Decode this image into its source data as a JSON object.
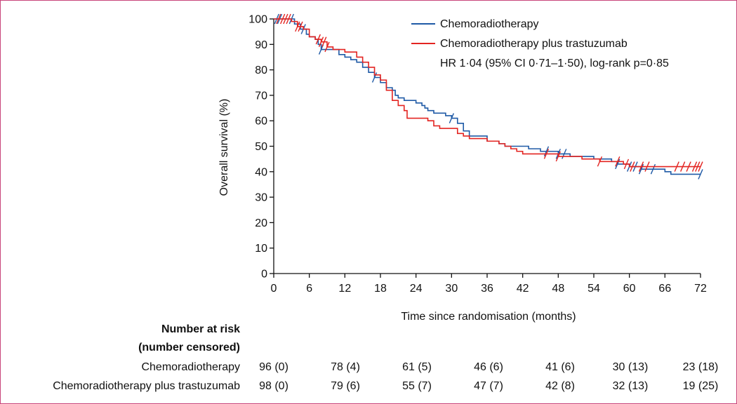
{
  "chart_data": {
    "type": "line",
    "subtype": "kaplan-meier",
    "xlabel": "Time since randomisation (months)",
    "ylabel": "Overall survival (%)",
    "xlim": [
      0,
      72
    ],
    "ylim": [
      0,
      100
    ],
    "xticks": [
      0,
      6,
      12,
      18,
      24,
      30,
      36,
      42,
      48,
      54,
      60,
      66,
      72
    ],
    "yticks": [
      0,
      10,
      20,
      30,
      40,
      50,
      60,
      70,
      80,
      90,
      100
    ],
    "annotation": "HR 1·04 (95% CI 0·71–1·50), log-rank p=0·85",
    "series": [
      {
        "name": "Chemoradiotherapy",
        "color": "#1f5aa6",
        "steps": [
          [
            0,
            100
          ],
          [
            3,
            100
          ],
          [
            3.5,
            98
          ],
          [
            4.5,
            96
          ],
          [
            5.5,
            94
          ],
          [
            6,
            93
          ],
          [
            7,
            92
          ],
          [
            7.5,
            90
          ],
          [
            8,
            88
          ],
          [
            10,
            88
          ],
          [
            11,
            86
          ],
          [
            12,
            85
          ],
          [
            13,
            84
          ],
          [
            14,
            83
          ],
          [
            15,
            81
          ],
          [
            16,
            79
          ],
          [
            17,
            77
          ],
          [
            18,
            75
          ],
          [
            19,
            73
          ],
          [
            20,
            72
          ],
          [
            20.5,
            70
          ],
          [
            21,
            69
          ],
          [
            22,
            68
          ],
          [
            24,
            67
          ],
          [
            25,
            66
          ],
          [
            25.5,
            65
          ],
          [
            26,
            64
          ],
          [
            27,
            63
          ],
          [
            29,
            62
          ],
          [
            30,
            61
          ],
          [
            31,
            59
          ],
          [
            32,
            56
          ],
          [
            33,
            54
          ],
          [
            36,
            52
          ],
          [
            38,
            51
          ],
          [
            39,
            50
          ],
          [
            43,
            49
          ],
          [
            45,
            48
          ],
          [
            48,
            47
          ],
          [
            50,
            46
          ],
          [
            54,
            45
          ],
          [
            57,
            44
          ],
          [
            58,
            43
          ],
          [
            60,
            42
          ],
          [
            61,
            42
          ],
          [
            62,
            41
          ],
          [
            66,
            40
          ],
          [
            67,
            39
          ],
          [
            72,
            39
          ]
        ],
        "censored": [
          0.5,
          1,
          3,
          5,
          8,
          17,
          30,
          46,
          48,
          49,
          58,
          60,
          61,
          62,
          64,
          72
        ]
      },
      {
        "name": "Chemoradiotherapy plus trastuzumab",
        "color": "#e32421",
        "steps": [
          [
            0,
            100
          ],
          [
            3,
            99
          ],
          [
            4,
            97
          ],
          [
            5,
            96
          ],
          [
            6,
            93
          ],
          [
            7,
            92
          ],
          [
            8,
            91
          ],
          [
            9,
            89
          ],
          [
            10,
            88
          ],
          [
            12,
            87
          ],
          [
            14,
            85
          ],
          [
            15,
            83
          ],
          [
            16,
            81
          ],
          [
            17,
            78
          ],
          [
            18,
            76
          ],
          [
            19,
            72
          ],
          [
            20,
            68
          ],
          [
            21,
            66
          ],
          [
            22,
            64
          ],
          [
            22.5,
            61
          ],
          [
            26,
            60
          ],
          [
            27,
            58
          ],
          [
            28,
            57
          ],
          [
            31,
            55
          ],
          [
            32,
            54
          ],
          [
            33,
            53
          ],
          [
            36,
            52
          ],
          [
            38,
            51
          ],
          [
            39,
            50
          ],
          [
            40,
            49
          ],
          [
            41,
            48
          ],
          [
            42,
            47
          ],
          [
            48,
            46
          ],
          [
            52,
            45
          ],
          [
            55,
            44
          ],
          [
            59,
            43
          ],
          [
            60,
            42
          ],
          [
            72,
            42
          ]
        ],
        "censored": [
          0.8,
          1.5,
          2,
          2.5,
          4,
          4.5,
          7.5,
          8,
          8.5,
          9,
          46,
          48,
          55,
          58,
          59.5,
          60.5,
          62,
          63,
          68,
          69,
          70,
          71,
          71.5,
          72
        ]
      }
    ]
  },
  "risk_table": {
    "title_line1": "Number at risk",
    "title_line2": "(number censored)",
    "rows": [
      {
        "label": "Chemoradiotherapy",
        "values": [
          "96 (0)",
          "78 (4)",
          "61 (5)",
          "46 (6)",
          "41 (6)",
          "30 (13)",
          "23 (18)"
        ]
      },
      {
        "label": "Chemoradiotherapy plus trastuzumab",
        "values": [
          "98 (0)",
          "79 (6)",
          "55 (7)",
          "47 (7)",
          "42 (8)",
          "32 (13)",
          "19 (25)"
        ]
      }
    ]
  }
}
